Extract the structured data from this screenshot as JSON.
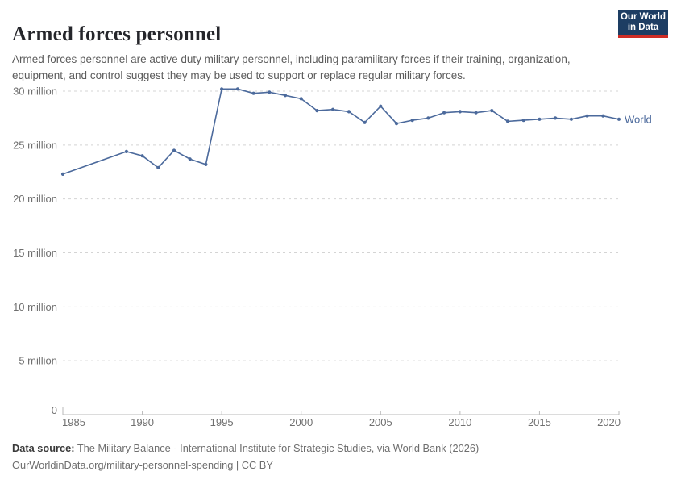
{
  "header": {
    "title": "Armed forces personnel",
    "subtitle": "Armed forces personnel are active duty military personnel, including paramilitary forces if their training, organization, equipment, and control suggest they may be used to support or replace regular military forces.",
    "logo": {
      "line1": "Our World",
      "line2": "in Data",
      "bg_color": "#1d3d63",
      "accent_color": "#cf2d26"
    }
  },
  "chart_data": {
    "type": "line",
    "title": "Armed forces personnel",
    "unit": "million people",
    "grid": true,
    "legend_position": "right-of-line",
    "x_axis": {
      "range": [
        1985,
        2020
      ],
      "ticks": [
        1985,
        1990,
        1995,
        2000,
        2005,
        2010,
        2015,
        2020
      ]
    },
    "y_axis": {
      "range_millions": [
        0,
        30
      ],
      "ticks": [
        {
          "value": 0,
          "label": "0"
        },
        {
          "value": 5,
          "label": "5 million"
        },
        {
          "value": 10,
          "label": "10 million"
        },
        {
          "value": 15,
          "label": "15 million"
        },
        {
          "value": 20,
          "label": "20 million"
        },
        {
          "value": 25,
          "label": "25 million"
        },
        {
          "value": 30,
          "label": "30 million"
        }
      ]
    },
    "series": [
      {
        "name": "World",
        "color": "#4c6a9c",
        "points_year_millions": [
          [
            1985,
            22.3
          ],
          [
            1989,
            24.4
          ],
          [
            1990,
            24.0
          ],
          [
            1991,
            22.9
          ],
          [
            1992,
            24.5
          ],
          [
            1993,
            23.7
          ],
          [
            1994,
            23.2
          ],
          [
            1995,
            30.2
          ],
          [
            1996,
            30.2
          ],
          [
            1997,
            29.8
          ],
          [
            1998,
            29.9
          ],
          [
            1999,
            29.6
          ],
          [
            2000,
            29.3
          ],
          [
            2001,
            28.2
          ],
          [
            2002,
            28.3
          ],
          [
            2003,
            28.1
          ],
          [
            2004,
            27.1
          ],
          [
            2005,
            28.6
          ],
          [
            2006,
            27.0
          ],
          [
            2007,
            27.3
          ],
          [
            2008,
            27.5
          ],
          [
            2009,
            28.0
          ],
          [
            2010,
            28.1
          ],
          [
            2011,
            28.0
          ],
          [
            2012,
            28.2
          ],
          [
            2013,
            27.2
          ],
          [
            2014,
            27.3
          ],
          [
            2015,
            27.4
          ],
          [
            2016,
            27.5
          ],
          [
            2017,
            27.4
          ],
          [
            2018,
            27.7
          ],
          [
            2019,
            27.7
          ],
          [
            2020,
            27.4
          ]
        ]
      }
    ]
  },
  "footer": {
    "source_label": "Data source:",
    "source_text": "The Military Balance - International Institute for Strategic Studies, via World Bank (2026)",
    "url_text": "OurWorldinData.org/military-personnel-spending",
    "separator": " | ",
    "license_text": "CC BY"
  }
}
